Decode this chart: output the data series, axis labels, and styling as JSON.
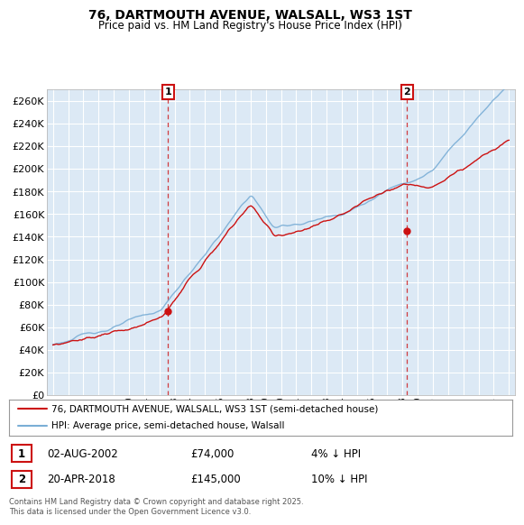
{
  "title": "76, DARTMOUTH AVENUE, WALSALL, WS3 1ST",
  "subtitle": "Price paid vs. HM Land Registry's House Price Index (HPI)",
  "ylim": [
    0,
    270000
  ],
  "yticks": [
    0,
    20000,
    40000,
    60000,
    80000,
    100000,
    120000,
    140000,
    160000,
    180000,
    200000,
    220000,
    240000,
    260000
  ],
  "xlim_start": 1994.6,
  "xlim_end": 2025.4,
  "marker1_x": 2002.58,
  "marker1_y": 74000,
  "marker1_label": "1",
  "marker1_date": "02-AUG-2002",
  "marker1_price": "£74,000",
  "marker1_hpi": "4% ↓ HPI",
  "marker2_x": 2018.3,
  "marker2_y": 145000,
  "marker2_label": "2",
  "marker2_date": "20-APR-2018",
  "marker2_price": "£145,000",
  "marker2_hpi": "10% ↓ HPI",
  "hpi_color": "#7aaed6",
  "price_color": "#cc1111",
  "marker_color": "#cc1111",
  "legend_label_price": "76, DARTMOUTH AVENUE, WALSALL, WS3 1ST (semi-detached house)",
  "legend_label_hpi": "HPI: Average price, semi-detached house, Walsall",
  "footnote": "Contains HM Land Registry data © Crown copyright and database right 2025.\nThis data is licensed under the Open Government Licence v3.0.",
  "background_color": "#ffffff",
  "plot_background": "#dce9f5"
}
